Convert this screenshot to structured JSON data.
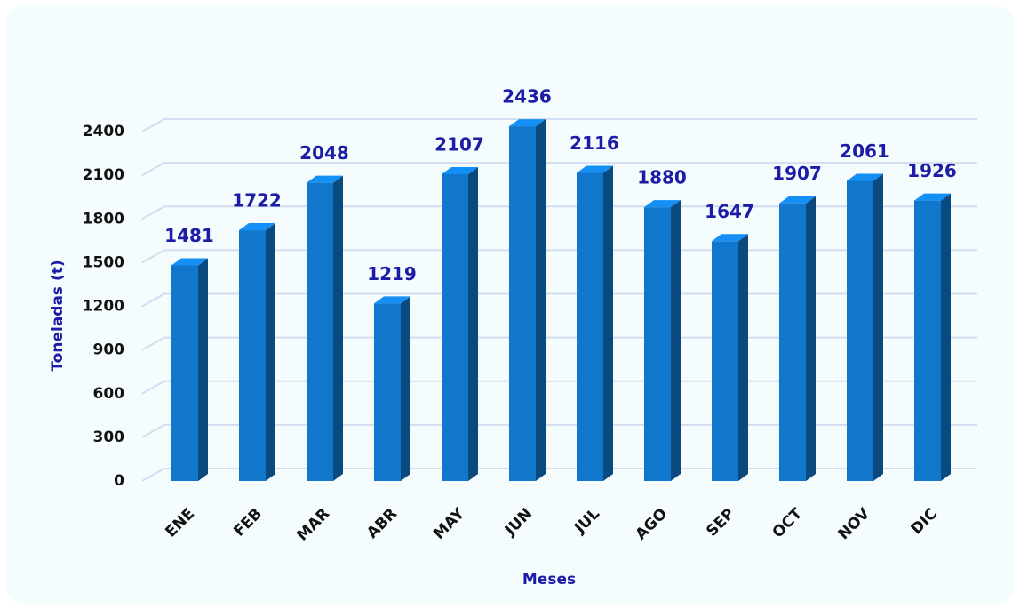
{
  "chart_data": {
    "type": "bar",
    "categories": [
      "ENE",
      "FEB",
      "MAR",
      "ABR",
      "MAY",
      "JUN",
      "JUL",
      "AGO",
      "SEP",
      "OCT",
      "NOV",
      "DIC"
    ],
    "values": [
      1481,
      1722,
      2048,
      1219,
      2107,
      2436,
      2116,
      1880,
      1647,
      1907,
      2061,
      1926
    ],
    "color": "#1177cc",
    "x_label": "Meses",
    "y_label": "Toneladas (t)",
    "ylim": [
      0,
      2400
    ],
    "yticks": [
      0,
      300,
      600,
      900,
      1200,
      1500,
      1800,
      2100,
      2400
    ],
    "grid": true
  }
}
